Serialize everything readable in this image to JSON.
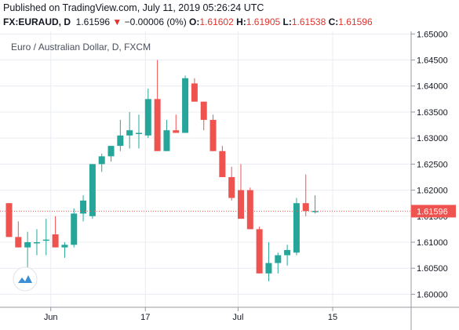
{
  "header": {
    "published": "Published on TradingView.com, July 11, 2019 05:26:24 UTC",
    "symbol": "FX:EURAUD, D",
    "last": "1.61596",
    "change_arrow": "▼",
    "change": "−0.00006 (0%)",
    "open_label": "O:",
    "open": "1.61602",
    "high_label": "H:",
    "high": "1.61905",
    "low_label": "L:",
    "low": "1.61538",
    "close_label": "C:",
    "close": "1.61596"
  },
  "colors": {
    "up": "#26a69a",
    "down": "#ef5350",
    "price_line": "#ef5350",
    "grid": "#e9ecf2",
    "axis_text": "#131722"
  },
  "logo_icon": "tradingview-logo-icon",
  "chart_data": {
    "type": "candlestick",
    "title": "Euro / Australian Dollar, D, FXCM",
    "ylim": [
      1.5975,
      1.6505
    ],
    "y_ticks": [
      "1.60000",
      "1.60500",
      "1.61000",
      "1.61500",
      "1.62000",
      "1.62500",
      "1.63000",
      "1.63500",
      "1.64000",
      "1.64500",
      "1.65000"
    ],
    "x_tick_labels": [
      "Jun",
      "17",
      "Jul",
      "15"
    ],
    "last_price": "1.61596",
    "candles": [
      {
        "o": 1.6175,
        "h": 1.6175,
        "l": 1.611,
        "c": 1.611
      },
      {
        "o": 1.611,
        "h": 1.614,
        "l": 1.609,
        "c": 1.609
      },
      {
        "o": 1.609,
        "h": 1.612,
        "l": 1.605,
        "c": 1.61
      },
      {
        "o": 1.61,
        "h": 1.6125,
        "l": 1.6075,
        "c": 1.61
      },
      {
        "o": 1.6105,
        "h": 1.6145,
        "l": 1.6075,
        "c": 1.6105
      },
      {
        "o": 1.6115,
        "h": 1.615,
        "l": 1.609,
        "c": 1.609
      },
      {
        "o": 1.609,
        "h": 1.61,
        "l": 1.607,
        "c": 1.6095
      },
      {
        "o": 1.6095,
        "h": 1.6165,
        "l": 1.609,
        "c": 1.6155
      },
      {
        "o": 1.6155,
        "h": 1.619,
        "l": 1.614,
        "c": 1.618
      },
      {
        "o": 1.615,
        "h": 1.625,
        "l": 1.6145,
        "c": 1.625
      },
      {
        "o": 1.625,
        "h": 1.627,
        "l": 1.6235,
        "c": 1.6265
      },
      {
        "o": 1.6265,
        "h": 1.6285,
        "l": 1.6255,
        "c": 1.6285
      },
      {
        "o": 1.6285,
        "h": 1.6335,
        "l": 1.6275,
        "c": 1.6305
      },
      {
        "o": 1.6305,
        "h": 1.635,
        "l": 1.628,
        "c": 1.6315
      },
      {
        "o": 1.631,
        "h": 1.6345,
        "l": 1.628,
        "c": 1.631
      },
      {
        "o": 1.6305,
        "h": 1.6395,
        "l": 1.63,
        "c": 1.6375
      },
      {
        "o": 1.6375,
        "h": 1.645,
        "l": 1.6275,
        "c": 1.6275
      },
      {
        "o": 1.6275,
        "h": 1.6335,
        "l": 1.6275,
        "c": 1.6315
      },
      {
        "o": 1.6315,
        "h": 1.6345,
        "l": 1.631,
        "c": 1.631
      },
      {
        "o": 1.631,
        "h": 1.642,
        "l": 1.631,
        "c": 1.6415
      },
      {
        "o": 1.6405,
        "h": 1.6415,
        "l": 1.637,
        "c": 1.637
      },
      {
        "o": 1.637,
        "h": 1.637,
        "l": 1.6315,
        "c": 1.6335
      },
      {
        "o": 1.6335,
        "h": 1.6345,
        "l": 1.6275,
        "c": 1.6275
      },
      {
        "o": 1.6275,
        "h": 1.6285,
        "l": 1.6225,
        "c": 1.6225
      },
      {
        "o": 1.6225,
        "h": 1.6245,
        "l": 1.618,
        "c": 1.6185
      },
      {
        "o": 1.62,
        "h": 1.625,
        "l": 1.6145,
        "c": 1.6145
      },
      {
        "o": 1.62,
        "h": 1.6205,
        "l": 1.6125,
        "c": 1.6125
      },
      {
        "o": 1.6125,
        "h": 1.613,
        "l": 1.604,
        "c": 1.604
      },
      {
        "o": 1.604,
        "h": 1.61,
        "l": 1.6025,
        "c": 1.606
      },
      {
        "o": 1.606,
        "h": 1.608,
        "l": 1.604,
        "c": 1.6075
      },
      {
        "o": 1.6075,
        "h": 1.6095,
        "l": 1.6055,
        "c": 1.6085
      },
      {
        "o": 1.608,
        "h": 1.6185,
        "l": 1.6075,
        "c": 1.6175
      },
      {
        "o": 1.6175,
        "h": 1.623,
        "l": 1.615,
        "c": 1.616
      },
      {
        "o": 1.616,
        "h": 1.619,
        "l": 1.6155,
        "c": 1.616
      }
    ]
  }
}
